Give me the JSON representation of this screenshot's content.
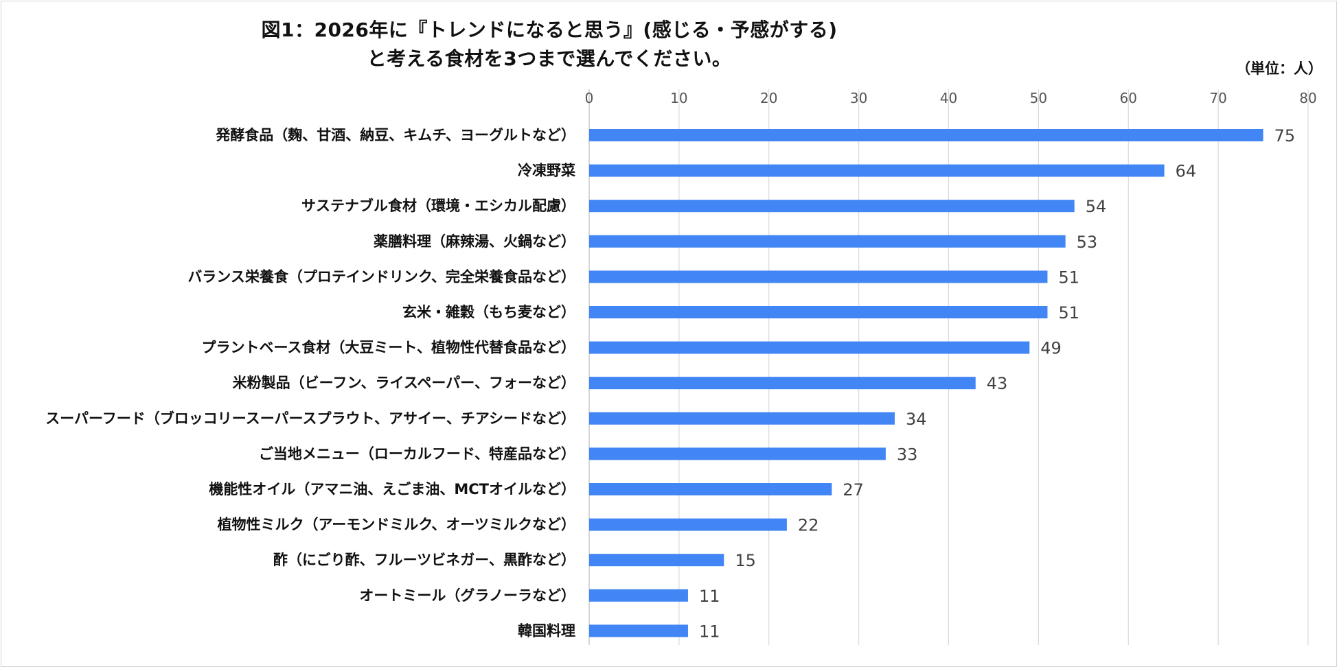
{
  "title_line1": "図1：2026年に『トレンドになると思う』(感じる・予感がする)",
  "title_line2": "と考える食材を3つまで選んでください。",
  "unit_label": "（単位：人）",
  "colors": {
    "bar": "#4285f4",
    "grid": "#d9d9d9",
    "axis": "#bfbfbf"
  },
  "chart_data": {
    "type": "bar",
    "orientation": "horizontal",
    "title": "図1：2026年に『トレンドになると思う』(感じる・予感がする)と考える食材を3つまで選んでください。",
    "xlim": [
      0,
      80
    ],
    "xticks": [
      0,
      10,
      20,
      30,
      40,
      50,
      60,
      70,
      80
    ],
    "xaxis_position": "top",
    "grid": true,
    "legend": "none",
    "categories": [
      "発酵食品（麹、甘酒、納豆、キムチ、ヨーグルトなど）",
      "冷凍野菜",
      "サステナブル食材（環境・エシカル配慮）",
      "薬膳料理（麻辣湯、火鍋など）",
      "バランス栄養食（プロテインドリンク、完全栄養食品など）",
      "玄米・雑穀（もち麦など）",
      "プラントベース食材（大豆ミート、植物性代替食品など）",
      "米粉製品（ビーフン、ライスペーパー、フォーなど）",
      "スーパーフード（ブロッコリースーパースプラウト、アサイー、チアシードなど）",
      "ご当地メニュー（ローカルフード、特産品など）",
      "機能性オイル（アマニ油、えごま油、MCTオイルなど）",
      "植物性ミルク（アーモンドミルク、オーツミルクなど）",
      "酢（にごり酢、フルーツビネガー、黒酢など）",
      "オートミール（グラノーラなど）",
      "韓国料理"
    ],
    "values": [
      75,
      64,
      54,
      53,
      51,
      51,
      49,
      43,
      34,
      33,
      27,
      22,
      15,
      11,
      11
    ]
  }
}
